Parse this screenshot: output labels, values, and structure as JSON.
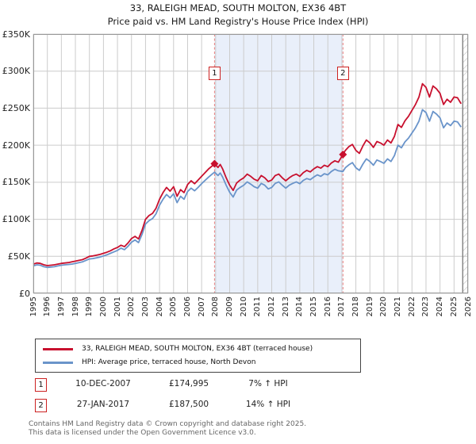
{
  "title": "33, RALEIGH MEAD, SOUTH MOLTON, EX36 4BT",
  "subtitle": "Price paid vs. HM Land Registry's House Price Index (HPI)",
  "legend": {
    "items": [
      {
        "label": "33, RALEIGH MEAD, SOUTH MOLTON, EX36 4BT (terraced house)",
        "color": "#c8102e"
      },
      {
        "label": "HPI: Average price, terraced house, North Devon",
        "color": "#6a94ca"
      }
    ]
  },
  "annotations": {
    "rows": [
      {
        "num": "1",
        "date": "10-DEC-2007",
        "price": "£174,995",
        "delta": "7% ↑ HPI"
      },
      {
        "num": "2",
        "date": "27-JAN-2017",
        "price": "£187,500",
        "delta": "14% ↑ HPI"
      }
    ]
  },
  "footer": {
    "line1": "Contains HM Land Registry data © Crown copyright and database right 2025.",
    "line2": "This data is licensed under the Open Government Licence v3.0."
  },
  "colors": {
    "series_red": "#c8102e",
    "series_blue": "#6a94ca",
    "shade": "#e9effa",
    "dashed_line": "#ea8080",
    "grid": "#cccccc",
    "frame": "#999999",
    "annotation_box_border": "#cc2222",
    "hatch": "#c4c4c4",
    "hatch_edge": "#808080",
    "footer_text": "#666666"
  },
  "chart_data": {
    "type": "line",
    "title": "33, RALEIGH MEAD, SOUTH MOLTON, EX36 4BT — Price paid vs. HPI",
    "xlabel": "",
    "ylabel": "",
    "grid": true,
    "legend_position": "bottom",
    "xlim": [
      1995,
      2026
    ],
    "ylim": [
      0,
      350000
    ],
    "xticks": [
      1995,
      1996,
      1997,
      1998,
      1999,
      2000,
      2001,
      2002,
      2003,
      2004,
      2005,
      2006,
      2007,
      2008,
      2009,
      2010,
      2011,
      2012,
      2013,
      2014,
      2015,
      2016,
      2017,
      2018,
      2019,
      2020,
      2021,
      2022,
      2023,
      2024,
      2025,
      2026
    ],
    "yticks": [
      {
        "value": 0,
        "label": "£0"
      },
      {
        "value": 50000,
        "label": "£50K"
      },
      {
        "value": 100000,
        "label": "£100K"
      },
      {
        "value": 150000,
        "label": "£150K"
      },
      {
        "value": 200000,
        "label": "£200K"
      },
      {
        "value": 250000,
        "label": "£250K"
      },
      {
        "value": 300000,
        "label": "£300K"
      },
      {
        "value": 350000,
        "label": "£350K"
      }
    ],
    "shaded_span": [
      2007.92,
      2017.08
    ],
    "hatch_span": [
      2025.62,
      2026
    ],
    "x": [
      1995,
      1995.25,
      1995.5,
      1995.75,
      1996,
      1996.25,
      1996.5,
      1996.75,
      1997,
      1997.25,
      1997.5,
      1997.75,
      1998,
      1998.25,
      1998.5,
      1998.75,
      1999,
      1999.25,
      1999.5,
      1999.75,
      2000,
      2000.25,
      2000.5,
      2000.75,
      2001,
      2001.25,
      2001.5,
      2001.75,
      2002,
      2002.25,
      2002.5,
      2002.75,
      2003,
      2003.25,
      2003.5,
      2003.75,
      2004,
      2004.25,
      2004.5,
      2004.75,
      2005,
      2005.25,
      2005.5,
      2005.75,
      2006,
      2006.25,
      2006.5,
      2006.75,
      2007,
      2007.25,
      2007.5,
      2007.75,
      2007.92,
      2008.17,
      2008.33,
      2008.5,
      2008.75,
      2009,
      2009.25,
      2009.5,
      2009.75,
      2010,
      2010.25,
      2010.5,
      2010.75,
      2011,
      2011.25,
      2011.5,
      2011.75,
      2012,
      2012.25,
      2012.5,
      2012.75,
      2013,
      2013.25,
      2013.5,
      2013.75,
      2014,
      2014.25,
      2014.5,
      2014.75,
      2015,
      2015.25,
      2015.5,
      2015.75,
      2016,
      2016.25,
      2016.5,
      2016.75,
      2017.08,
      2017.25,
      2017.5,
      2017.75,
      2018,
      2018.25,
      2018.5,
      2018.75,
      2019,
      2019.25,
      2019.5,
      2019.75,
      2020,
      2020.25,
      2020.5,
      2020.75,
      2021,
      2021.25,
      2021.5,
      2021.75,
      2022,
      2022.25,
      2022.5,
      2022.75,
      2023,
      2023.25,
      2023.5,
      2023.75,
      2024,
      2024.25,
      2024.5,
      2024.75,
      2025,
      2025.25,
      2025.5
    ],
    "series": [
      {
        "name": "33, RALEIGH MEAD, SOUTH MOLTON, EX36 4BT (terraced house)",
        "color": "#c8102e",
        "values": [
          39500,
          41000,
          40500,
          38500,
          37500,
          38000,
          38500,
          39500,
          40500,
          41000,
          41500,
          42500,
          43500,
          44500,
          45500,
          47500,
          50000,
          50500,
          51500,
          52500,
          54000,
          55500,
          57500,
          60000,
          62000,
          65000,
          63000,
          68000,
          74000,
          77000,
          73500,
          85000,
          100000,
          105000,
          108000,
          115000,
          127000,
          136000,
          143000,
          138000,
          144000,
          131000,
          140000,
          136000,
          147000,
          152000,
          148000,
          153000,
          158000,
          163000,
          168000,
          172000,
          174995,
          170000,
          174000,
          168000,
          156000,
          146000,
          139000,
          149000,
          153000,
          156000,
          161000,
          158000,
          154000,
          152000,
          159000,
          156000,
          151000,
          153000,
          159000,
          161000,
          156000,
          152000,
          156000,
          159000,
          161000,
          158000,
          163000,
          166000,
          164000,
          168000,
          171000,
          169000,
          173000,
          171000,
          176000,
          179000,
          177000,
          187500,
          193000,
          198000,
          201000,
          193000,
          189000,
          199000,
          207000,
          203000,
          197000,
          205000,
          203000,
          200000,
          207000,
          203000,
          212000,
          228000,
          224000,
          233000,
          239000,
          247000,
          255000,
          265000,
          283000,
          278000,
          265000,
          280000,
          276000,
          270000,
          255000,
          262000,
          258000,
          265000,
          264000,
          256000
        ]
      },
      {
        "name": "HPI: Average price, terraced house, North Devon",
        "color": "#6a94ca",
        "values": [
          37000,
          38500,
          38000,
          36000,
          35000,
          35500,
          36000,
          37000,
          38000,
          38500,
          39000,
          39500,
          40500,
          41500,
          42500,
          44500,
          46500,
          47000,
          48000,
          49000,
          50500,
          52000,
          54000,
          56000,
          58000,
          61000,
          59000,
          63500,
          69000,
          72000,
          68500,
          79500,
          93500,
          98000,
          101000,
          107500,
          119000,
          127000,
          133500,
          129000,
          134500,
          122500,
          131000,
          127000,
          137500,
          142000,
          138500,
          143000,
          148000,
          152500,
          157000,
          161000,
          163500,
          159000,
          162500,
          157000,
          146000,
          136500,
          130000,
          139500,
          143000,
          146000,
          150500,
          147500,
          144000,
          142000,
          148500,
          146000,
          141000,
          143000,
          148500,
          150500,
          146000,
          142000,
          146000,
          148500,
          150500,
          148000,
          152500,
          155000,
          153500,
          157000,
          160000,
          158000,
          161500,
          160000,
          164500,
          167500,
          165500,
          164500,
          169500,
          173500,
          176500,
          169500,
          166000,
          174500,
          181500,
          178000,
          173000,
          180000,
          178000,
          175500,
          181500,
          178000,
          186000,
          200000,
          196500,
          204500,
          209500,
          216500,
          223500,
          232500,
          248000,
          244000,
          232500,
          245500,
          242000,
          237000,
          223500,
          230000,
          226500,
          232500,
          231500,
          224500
        ]
      }
    ],
    "sale_markers": [
      {
        "label": "1",
        "x": 2007.92,
        "y": 174995,
        "date": "10-DEC-2007",
        "price": "£174,995",
        "delta": "7% ↑ HPI"
      },
      {
        "label": "2",
        "x": 2017.08,
        "y": 187500,
        "date": "27-JAN-2017",
        "price": "£187,500",
        "delta": "14% ↑ HPI"
      }
    ]
  }
}
